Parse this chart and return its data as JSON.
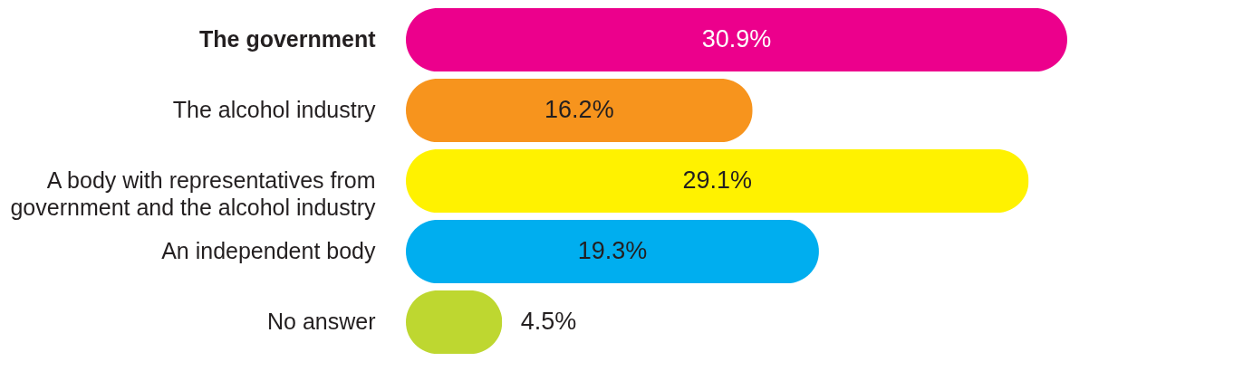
{
  "chart_data": {
    "type": "bar",
    "orientation": "horizontal",
    "categories": [
      "The government",
      "The alcohol industry",
      "A body with representatives from\ngovernment and the alcohol industry",
      "An independent body",
      "No answer"
    ],
    "values": [
      30.9,
      16.2,
      29.1,
      19.3,
      4.5
    ],
    "colors": [
      "#ec008c",
      "#f7941d",
      "#fff200",
      "#00aeef",
      "#bed730"
    ],
    "value_labels": [
      "30.9%",
      "16.2%",
      "29.1%",
      "19.3%",
      "4.5%"
    ],
    "grid": false
  }
}
